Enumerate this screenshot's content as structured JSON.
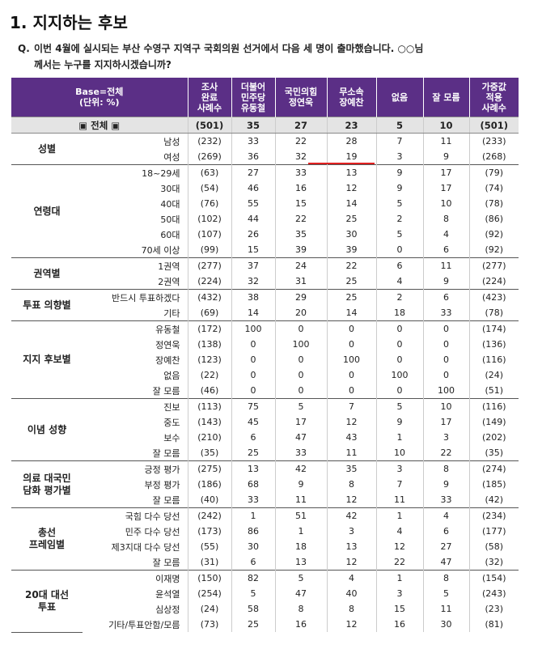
{
  "title": "1. 지지하는 후보",
  "question": {
    "mark": "Q.",
    "line1": "이번 4월에 실시되는 부산 수영구 지역구 국회의원 선거에서 다음 세 명이 출마했습니다. ○○님",
    "line2": "께서는 누구를 지지하시겠습니까?"
  },
  "header": {
    "base": [
      "Base=전체",
      "(단위: %)"
    ],
    "columns": [
      [
        "조사",
        "완료",
        "사례수"
      ],
      [
        "더불어",
        "민주당",
        "유동철"
      ],
      [
        "국민의힘",
        "정연욱"
      ],
      [
        "무소속",
        "장예찬"
      ],
      [
        "없음"
      ],
      [
        "잘 모름"
      ],
      [
        "가중값",
        "적용",
        "사례수"
      ]
    ]
  },
  "total": {
    "label": "▣ 전체 ▣",
    "values": [
      "(501)",
      "35",
      "27",
      "23",
      "5",
      "10",
      "(501)"
    ]
  },
  "groups": [
    {
      "name": [
        "성별"
      ],
      "rows": [
        {
          "label": "남성",
          "values": [
            "(232)",
            "33",
            "22",
            "28",
            "7",
            "11",
            "(233)"
          ]
        },
        {
          "label": "여성",
          "values": [
            "(269)",
            "36",
            "32",
            "19",
            "3",
            "9",
            "(268)"
          ]
        }
      ]
    },
    {
      "name": [
        "연령대"
      ],
      "rows": [
        {
          "label": "18~29세",
          "values": [
            "(63)",
            "27",
            "33",
            "13",
            "9",
            "17",
            "(79)"
          ]
        },
        {
          "label": "30대",
          "values": [
            "(54)",
            "46",
            "16",
            "12",
            "9",
            "17",
            "(74)"
          ]
        },
        {
          "label": "40대",
          "values": [
            "(76)",
            "55",
            "15",
            "14",
            "5",
            "10",
            "(78)"
          ]
        },
        {
          "label": "50대",
          "values": [
            "(102)",
            "44",
            "22",
            "25",
            "2",
            "8",
            "(86)"
          ]
        },
        {
          "label": "60대",
          "values": [
            "(107)",
            "26",
            "35",
            "30",
            "5",
            "4",
            "(92)"
          ]
        },
        {
          "label": "70세 이상",
          "values": [
            "(99)",
            "15",
            "39",
            "39",
            "0",
            "6",
            "(92)"
          ]
        }
      ]
    },
    {
      "name": [
        "권역별"
      ],
      "rows": [
        {
          "label": "1권역",
          "values": [
            "(277)",
            "37",
            "24",
            "22",
            "6",
            "11",
            "(277)"
          ]
        },
        {
          "label": "2권역",
          "values": [
            "(224)",
            "32",
            "31",
            "25",
            "4",
            "9",
            "(224)"
          ]
        }
      ]
    },
    {
      "name": [
        "투표 의향별"
      ],
      "rows": [
        {
          "label": "반드시 투표하겠다",
          "values": [
            "(432)",
            "38",
            "29",
            "25",
            "2",
            "6",
            "(423)"
          ]
        },
        {
          "label": "기타",
          "values": [
            "(69)",
            "14",
            "20",
            "14",
            "18",
            "33",
            "(78)"
          ]
        }
      ]
    },
    {
      "name": [
        "지지 후보별"
      ],
      "rows": [
        {
          "label": "유동철",
          "values": [
            "(172)",
            "100",
            "0",
            "0",
            "0",
            "0",
            "(174)"
          ]
        },
        {
          "label": "정연욱",
          "values": [
            "(138)",
            "0",
            "100",
            "0",
            "0",
            "0",
            "(136)"
          ]
        },
        {
          "label": "장예찬",
          "values": [
            "(123)",
            "0",
            "0",
            "100",
            "0",
            "0",
            "(116)"
          ]
        },
        {
          "label": "없음",
          "values": [
            "(22)",
            "0",
            "0",
            "0",
            "100",
            "0",
            "(24)"
          ]
        },
        {
          "label": "잘 모름",
          "values": [
            "(46)",
            "0",
            "0",
            "0",
            "0",
            "100",
            "(51)"
          ]
        }
      ]
    },
    {
      "name": [
        "이념 성향"
      ],
      "rows": [
        {
          "label": "진보",
          "values": [
            "(113)",
            "75",
            "5",
            "7",
            "5",
            "10",
            "(116)"
          ]
        },
        {
          "label": "중도",
          "values": [
            "(143)",
            "45",
            "17",
            "12",
            "9",
            "17",
            "(149)"
          ]
        },
        {
          "label": "보수",
          "values": [
            "(210)",
            "6",
            "47",
            "43",
            "1",
            "3",
            "(202)"
          ]
        },
        {
          "label": "잘 모름",
          "values": [
            "(35)",
            "25",
            "33",
            "11",
            "10",
            "22",
            "(35)"
          ]
        }
      ]
    },
    {
      "name": [
        "의료 대국민",
        "담화 평가별"
      ],
      "rows": [
        {
          "label": "긍정 평가",
          "values": [
            "(275)",
            "13",
            "42",
            "35",
            "3",
            "8",
            "(274)"
          ]
        },
        {
          "label": "부정 평가",
          "values": [
            "(186)",
            "68",
            "9",
            "8",
            "7",
            "9",
            "(185)"
          ]
        },
        {
          "label": "잘 모름",
          "values": [
            "(40)",
            "33",
            "11",
            "12",
            "11",
            "33",
            "(42)"
          ]
        }
      ]
    },
    {
      "name": [
        "총선",
        "프레임별"
      ],
      "rows": [
        {
          "label": "국힘 다수 당선",
          "values": [
            "(242)",
            "1",
            "51",
            "42",
            "1",
            "4",
            "(234)"
          ]
        },
        {
          "label": "민주 다수 당선",
          "values": [
            "(173)",
            "86",
            "1",
            "3",
            "4",
            "6",
            "(177)"
          ]
        },
        {
          "label": "제3지대 다수 당선",
          "values": [
            "(55)",
            "30",
            "18",
            "13",
            "12",
            "27",
            "(58)"
          ]
        },
        {
          "label": "잘 모름",
          "values": [
            "(31)",
            "6",
            "13",
            "12",
            "22",
            "47",
            "(32)"
          ]
        }
      ]
    },
    {
      "name": [
        "20대 대선",
        "투표"
      ],
      "rows": [
        {
          "label": "이재명",
          "values": [
            "(150)",
            "82",
            "5",
            "4",
            "1",
            "8",
            "(154)"
          ]
        },
        {
          "label": "윤석열",
          "values": [
            "(254)",
            "5",
            "47",
            "40",
            "3",
            "5",
            "(243)"
          ]
        },
        {
          "label": "심상정",
          "values": [
            "(24)",
            "58",
            "8",
            "8",
            "15",
            "11",
            "(23)"
          ]
        },
        {
          "label": "기타/투표안함/모름",
          "values": [
            "(73)",
            "25",
            "16",
            "12",
            "16",
            "30",
            "(81)"
          ]
        }
      ]
    }
  ]
}
